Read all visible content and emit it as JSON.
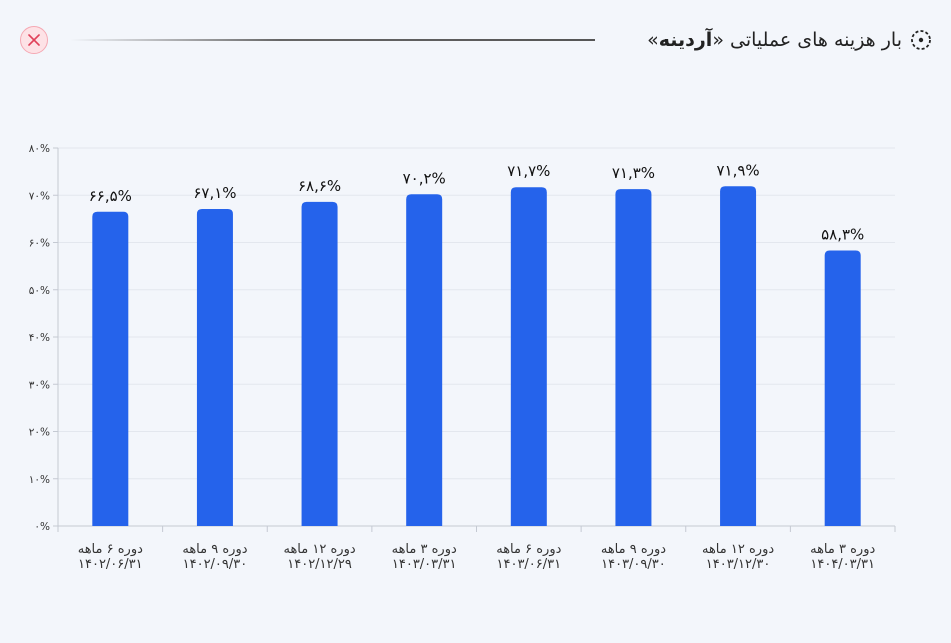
{
  "header": {
    "title_prefix": "بار هزینه های عملیاتی «",
    "title_bold": "آردینه",
    "title_suffix": "»",
    "title_icon": "dotted-circle-icon",
    "close_icon": "close-icon"
  },
  "colors": {
    "bar": "#2563eb",
    "grid": "#e3e7ee",
    "close_bg": "#fde2e6",
    "close_x": "#e0415a"
  },
  "chart_data": {
    "type": "bar",
    "title": "",
    "xlabel": "",
    "ylabel": "",
    "ylim": [
      0,
      80
    ],
    "yticks": [
      0,
      10,
      20,
      30,
      40,
      50,
      60,
      70,
      80
    ],
    "ytick_labels": [
      "۰%",
      "۱۰%",
      "۲۰%",
      "۳۰%",
      "۴۰%",
      "۵۰%",
      "۶۰%",
      "۷۰%",
      "۸۰%"
    ],
    "grid": true,
    "categories": [
      [
        "دوره ۶ ماهه",
        "۱۴۰۲/۰۶/۳۱"
      ],
      [
        "دوره ۹ ماهه",
        "۱۴۰۲/۰۹/۳۰"
      ],
      [
        "دوره ۱۲ ماهه",
        "۱۴۰۲/۱۲/۲۹"
      ],
      [
        "دوره ۳ ماهه",
        "۱۴۰۳/۰۳/۳۱"
      ],
      [
        "دوره ۶ ماهه",
        "۱۴۰۳/۰۶/۳۱"
      ],
      [
        "دوره ۹ ماهه",
        "۱۴۰۳/۰۹/۳۰"
      ],
      [
        "دوره ۱۲ ماهه",
        "۱۴۰۳/۱۲/۳۰"
      ],
      [
        "دوره ۳ ماهه",
        "۱۴۰۴/۰۳/۳۱"
      ]
    ],
    "values": [
      66.5,
      67.1,
      68.6,
      70.2,
      71.7,
      71.3,
      71.9,
      58.3
    ],
    "data_labels": [
      "۶۶,۵%",
      "۶۷,۱%",
      "۶۸,۶%",
      "۷۰,۲%",
      "۷۱,۷%",
      "۷۱,۳%",
      "۷۱,۹%",
      "۵۸,۳%"
    ]
  }
}
